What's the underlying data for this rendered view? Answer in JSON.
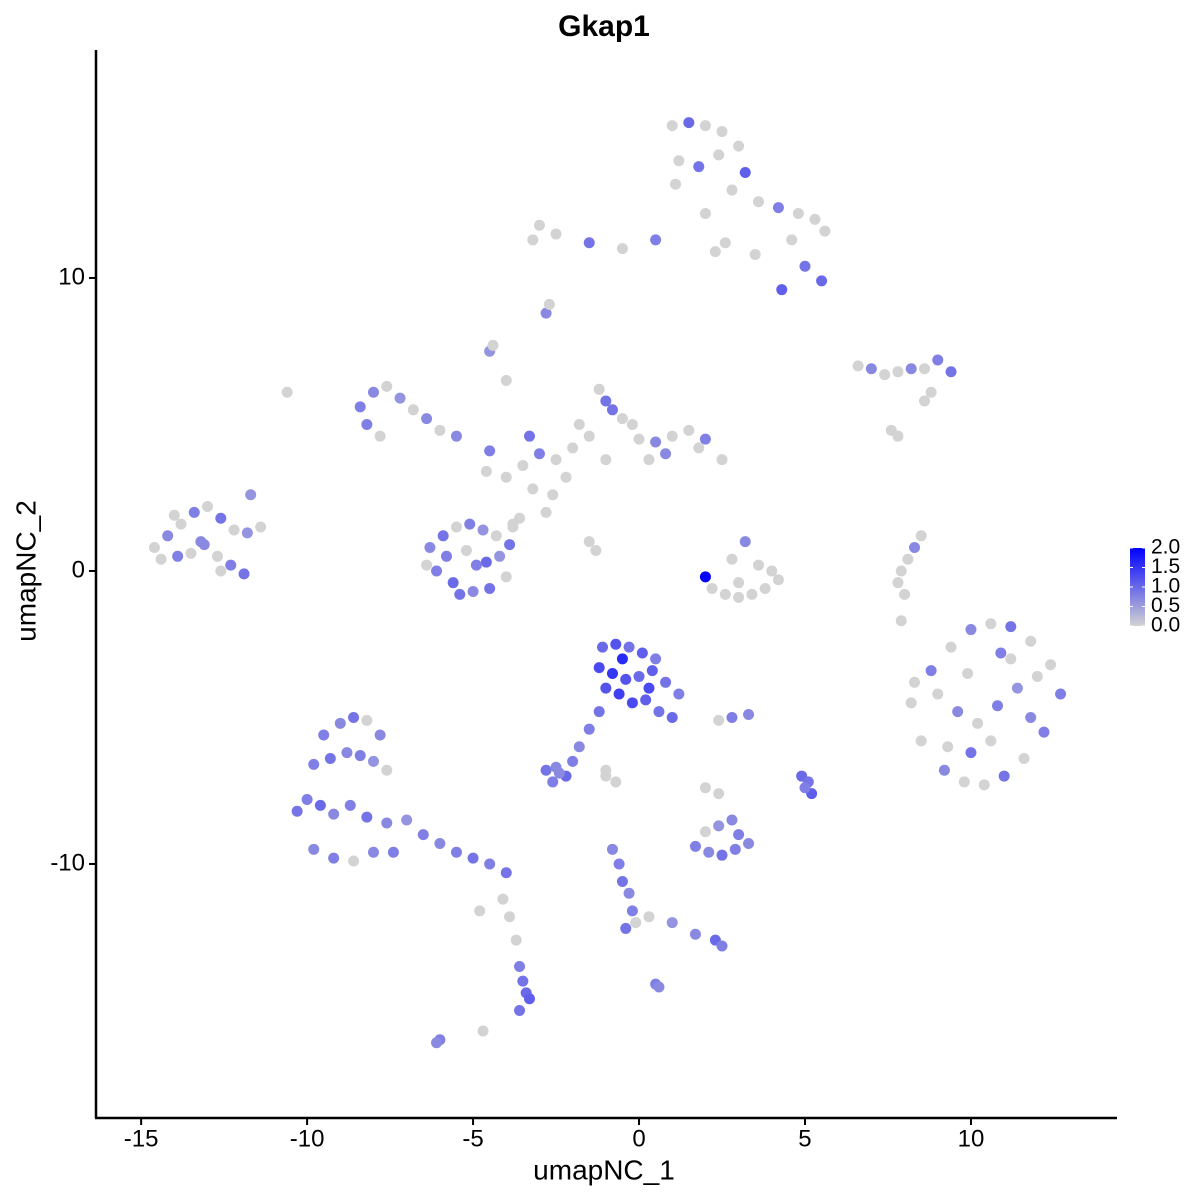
{
  "chart_data": {
    "type": "scatter",
    "title": "Gkap1",
    "x_label": "umapNC_1",
    "y_label": "umapNC_2",
    "xlim": [
      -16.36,
      14.4
    ],
    "ylim": [
      -18.67,
      17.78
    ],
    "xticks": [
      -15,
      -10,
      -5,
      0,
      5,
      10
    ],
    "yticks": [
      -10,
      0,
      10
    ],
    "color_scale": {
      "low_color": "#d3d3d3",
      "high_color": "#0000ff",
      "lim": [
        0,
        2
      ],
      "ticks": [
        {
          "value": 0,
          "label": "0.0"
        },
        0.5,
        {
          "value": 1,
          "label": "1.0"
        },
        1.5,
        {
          "value": 2,
          "label": "2.0"
        }
      ]
    },
    "series": [
      {
        "x": [
          1.0,
          1.5,
          2.0,
          2.5,
          3.0,
          1.2,
          1.8,
          2.4,
          3.2,
          1.1,
          2.8,
          3.6,
          4.2,
          4.8,
          5.3,
          5.6,
          4.6,
          5.0,
          5.5,
          4.3,
          3.5,
          2.6,
          0.5,
          -0.5,
          -1.5,
          -2.5,
          -3.0,
          -3.2,
          2.0,
          2.3
        ],
        "values": [
          15.2,
          15.3,
          15.2,
          15.0,
          14.5,
          14.0,
          13.8,
          14.2,
          13.6,
          13.2,
          13.0,
          12.6,
          12.4,
          12.2,
          12.0,
          11.6,
          11.3,
          10.4,
          9.9,
          9.6,
          10.8,
          11.2,
          11.3,
          11.0,
          11.2,
          11.5,
          11.8,
          11.3,
          12.2,
          10.9
        ],
        "color_values": [
          0,
          1.0,
          0,
          0,
          0,
          0,
          0.9,
          0,
          1.1,
          0,
          0,
          0,
          0.8,
          0,
          0,
          0,
          0,
          0.9,
          1.0,
          1.1,
          0,
          0,
          0.8,
          0,
          0.9,
          0,
          0,
          0,
          0,
          0
        ]
      },
      {
        "x": [
          -14.6,
          -14.2,
          -13.8,
          -13.4,
          -13.0,
          -12.6,
          -12.2,
          -11.8,
          -11.4,
          -14.4,
          -13.9,
          -13.5,
          -13.1,
          -12.7,
          -12.3,
          -11.9,
          -12.6,
          -13.2,
          -14.0,
          -11.7
        ],
        "values": [
          0.8,
          1.2,
          1.6,
          2.0,
          2.2,
          1.8,
          1.4,
          1.3,
          1.5,
          0.4,
          0.5,
          0.6,
          0.9,
          0.5,
          0.2,
          -0.1,
          0.0,
          1.0,
          1.9,
          2.6
        ],
        "color_values": [
          0,
          0.7,
          0,
          0.8,
          0,
          0.9,
          0,
          0.6,
          0,
          0,
          0.8,
          0,
          0.7,
          0,
          0.8,
          0.9,
          0,
          0.7,
          0,
          0.6
        ]
      },
      {
        "x": [
          -4.0,
          -3.5,
          -3.0,
          -2.5,
          -2.0,
          -1.5,
          -1.0,
          -0.5,
          0.0,
          0.5,
          1.0,
          1.5,
          2.0,
          2.5,
          -1.2,
          -0.8,
          -3.2,
          -2.8,
          -4.5,
          -2.2,
          -3.8,
          -1.0,
          0.8,
          1.8,
          -2.6,
          -0.2,
          -3.3,
          -4.6,
          -1.8,
          0.3
        ],
        "values": [
          3.2,
          3.6,
          4.0,
          3.8,
          4.2,
          4.6,
          5.8,
          5.2,
          4.5,
          4.4,
          4.6,
          4.8,
          4.5,
          3.8,
          6.2,
          5.5,
          2.8,
          2.0,
          4.1,
          3.2,
          1.6,
          3.8,
          4.0,
          4.2,
          2.6,
          5.0,
          4.6,
          3.4,
          5.0,
          3.8
        ],
        "color_values": [
          0,
          0,
          0.8,
          0,
          0,
          0,
          0.9,
          0,
          0,
          0.7,
          0,
          0,
          0.8,
          0,
          0,
          0.9,
          0,
          0,
          0.8,
          0,
          0,
          0,
          0.7,
          0,
          0,
          0,
          0.9,
          0,
          0,
          0
        ]
      },
      {
        "x": [
          -6.3,
          -5.9,
          -5.5,
          -5.1,
          -4.7,
          -4.3,
          -3.9,
          -6.1,
          -5.6,
          -5.0,
          -4.5,
          -4.0,
          -5.8,
          -5.2,
          -4.6,
          -5.4,
          -4.9,
          -4.2,
          -6.4,
          -3.8
        ],
        "values": [
          0.8,
          1.2,
          1.5,
          1.6,
          1.4,
          1.2,
          0.9,
          0.0,
          -0.4,
          -0.7,
          -0.6,
          -0.2,
          0.5,
          0.7,
          0.3,
          -0.8,
          0.2,
          0.5,
          0.2,
          1.5
        ],
        "color_values": [
          0.7,
          0.9,
          0,
          0.8,
          0.6,
          0,
          0.9,
          0.8,
          1.0,
          0.7,
          0.9,
          0,
          0.8,
          0,
          1.0,
          0.9,
          0.8,
          0.6,
          0,
          0
        ]
      },
      {
        "x": [
          -8.4,
          -8.0,
          -7.6,
          -7.2,
          -6.8,
          -6.4,
          -8.2,
          -7.8,
          -6.0,
          -5.5,
          -10.6,
          -4.5,
          -4.4,
          -4.0,
          -2.8,
          -2.7,
          -3.6,
          -1.5,
          -1.3
        ],
        "values": [
          5.6,
          6.1,
          6.3,
          5.9,
          5.5,
          5.2,
          5.0,
          4.6,
          4.8,
          4.6,
          6.1,
          7.5,
          7.7,
          6.5,
          8.8,
          9.1,
          1.8,
          1.0,
          0.7
        ],
        "color_values": [
          0.8,
          0.7,
          0,
          0.6,
          0,
          0.7,
          0.8,
          0,
          0,
          0.7,
          0,
          0.6,
          0,
          0,
          0.7,
          0,
          0,
          0,
          0
        ]
      },
      {
        "x": [
          2.2,
          2.6,
          3.0,
          3.4,
          3.8,
          4.2,
          2.8,
          3.2,
          3.6,
          3.0,
          2.0,
          4.0
        ],
        "values": [
          -0.6,
          -0.8,
          -0.9,
          -0.8,
          -0.6,
          -0.3,
          0.4,
          1.0,
          0.2,
          -0.4,
          -0.2,
          0.0
        ],
        "color_values": [
          0,
          0,
          0,
          0,
          0,
          0,
          0,
          0.7,
          0,
          0,
          2.0,
          0
        ]
      },
      {
        "x": [
          8.2,
          8.8,
          9.4,
          10.0,
          10.6,
          11.2,
          11.8,
          12.4,
          12.7,
          8.5,
          9.2,
          9.8,
          10.4,
          11.0,
          11.6,
          12.2,
          8.3,
          9.0,
          9.6,
          10.2,
          10.8,
          11.4,
          12.0,
          9.3,
          10.0,
          10.6,
          11.2,
          11.8,
          9.9,
          10.9
        ],
        "values": [
          -4.5,
          -3.4,
          -2.6,
          -2.0,
          -1.8,
          -1.9,
          -2.4,
          -3.2,
          -4.2,
          -5.8,
          -6.8,
          -7.2,
          -7.3,
          -7.0,
          -6.4,
          -5.5,
          -3.8,
          -4.2,
          -4.8,
          -5.2,
          -4.6,
          -4.0,
          -3.6,
          -6.0,
          -6.2,
          -5.8,
          -3.0,
          -5.0,
          -3.5,
          -2.8
        ],
        "color_values": [
          0,
          0.8,
          0,
          0.7,
          0,
          0.9,
          0,
          0,
          0.8,
          0,
          0.7,
          0,
          0,
          0.9,
          0,
          0.8,
          0,
          0,
          0.7,
          0,
          0.8,
          0.6,
          0,
          0,
          0.9,
          0,
          0,
          0.7,
          0,
          0.8
        ]
      },
      {
        "x": [
          6.6,
          7.0,
          7.4,
          7.8,
          8.2,
          8.6,
          9.0,
          9.4,
          8.8,
          8.6,
          7.6,
          7.8
        ],
        "values": [
          7.0,
          6.9,
          6.7,
          6.8,
          6.9,
          6.9,
          7.2,
          6.8,
          6.1,
          5.8,
          4.8,
          4.6
        ],
        "color_values": [
          0,
          0.7,
          0,
          0,
          0.7,
          0,
          0.8,
          0.9,
          0,
          0,
          0,
          0
        ]
      },
      {
        "x": [
          8.5,
          8.3,
          8.1,
          7.9,
          7.8,
          8.0,
          7.9
        ],
        "values": [
          1.2,
          0.8,
          0.4,
          0.0,
          -0.4,
          -0.8,
          -1.7
        ],
        "color_values": [
          0,
          0.7,
          0,
          0,
          0,
          0,
          0
        ]
      },
      {
        "x": [
          -1.1,
          -0.7,
          -0.3,
          0.1,
          0.5,
          -1.2,
          -0.8,
          -0.4,
          0.0,
          0.4,
          0.8,
          1.2,
          -0.6,
          -0.2,
          0.2,
          0.6,
          1.0,
          -1.0,
          -0.5,
          0.3
        ],
        "values": [
          -2.6,
          -2.5,
          -2.6,
          -2.8,
          -3.0,
          -3.3,
          -3.5,
          -3.7,
          -3.6,
          -3.4,
          -3.8,
          -4.2,
          -4.2,
          -4.5,
          -4.4,
          -4.8,
          -5.0,
          -4.0,
          -3.0,
          -4.0
        ],
        "color_values": [
          1.0,
          1.2,
          0.9,
          1.1,
          0.8,
          1.3,
          1.5,
          1.2,
          1.0,
          1.1,
          0.9,
          0.8,
          1.4,
          1.3,
          1.1,
          0.9,
          1.0,
          1.2,
          1.6,
          1.3
        ]
      },
      {
        "x": [
          -1.2,
          -1.5,
          -1.8,
          -2.0,
          -2.8,
          -2.5,
          -2.2,
          -2.6,
          -2.4,
          -1.0
        ],
        "values": [
          -4.8,
          -5.4,
          -6.0,
          -6.5,
          -6.8,
          -6.7,
          -7.0,
          -7.2,
          -6.9,
          -7.0
        ],
        "color_values": [
          0.9,
          0.8,
          0.7,
          0.8,
          0.9,
          0.7,
          1.0,
          0.8,
          0.7,
          0
        ]
      },
      {
        "x": [
          -9.5,
          -9.0,
          -8.6,
          -8.2,
          -7.8,
          -9.8,
          -9.3,
          -8.8,
          -8.4,
          -8.0,
          -7.6,
          -10.3,
          -10.0,
          -9.6,
          -9.2,
          -8.7,
          -8.2,
          -7.6,
          -7.0,
          -6.5,
          -6.0,
          -5.5,
          -5.0,
          -4.5,
          -4.0,
          -9.8,
          -9.2,
          -8.6,
          -8.0,
          -7.4
        ],
        "values": [
          -5.6,
          -5.2,
          -5.0,
          -5.1,
          -5.6,
          -6.6,
          -6.4,
          -6.2,
          -6.3,
          -6.5,
          -6.8,
          -8.2,
          -7.8,
          -8.0,
          -8.3,
          -8.0,
          -8.4,
          -8.6,
          -8.5,
          -9.0,
          -9.3,
          -9.6,
          -9.8,
          -10.0,
          -10.3,
          -9.5,
          -9.8,
          -9.9,
          -9.6,
          -9.6
        ],
        "color_values": [
          0.8,
          0.7,
          0.9,
          0,
          0.7,
          0.8,
          0.9,
          0.7,
          0.8,
          0.6,
          0,
          0.9,
          0.8,
          1.0,
          0.7,
          0.8,
          0.9,
          0.7,
          0.6,
          0.8,
          0.7,
          0.8,
          0.9,
          0.8,
          0.9,
          0.7,
          0.8,
          0,
          0.7,
          0.8
        ]
      },
      {
        "x": [
          -4.1,
          -3.9,
          -3.7,
          -3.6,
          -3.5,
          -3.4,
          -3.3,
          -3.6,
          -4.7,
          -6.0,
          -6.1,
          -4.8
        ],
        "values": [
          -11.2,
          -11.8,
          -12.6,
          -13.5,
          -14.0,
          -14.4,
          -14.6,
          -15.0,
          -15.7,
          -16.0,
          -16.1,
          -11.6
        ],
        "color_values": [
          0,
          0,
          0,
          0.8,
          0.9,
          1.0,
          1.1,
          0.9,
          0,
          0.8,
          0.7,
          0
        ]
      },
      {
        "x": [
          1.7,
          2.1,
          2.5,
          2.9,
          3.3,
          2.0,
          2.4,
          2.8,
          3.0,
          2.4
        ],
        "values": [
          -9.4,
          -9.6,
          -9.7,
          -9.5,
          -9.3,
          -8.9,
          -8.7,
          -8.5,
          -9.0,
          -7.6
        ],
        "color_values": [
          0.8,
          0.7,
          0.9,
          0.8,
          0.7,
          0,
          0.6,
          0.7,
          0.8,
          0
        ]
      },
      {
        "x": [
          -0.8,
          -0.6,
          -0.5,
          -0.3,
          -0.2,
          -0.4,
          0.3,
          1.0,
          1.7,
          2.3,
          2.5,
          -0.1
        ],
        "values": [
          -9.5,
          -10.0,
          -10.6,
          -11.0,
          -11.6,
          -12.2,
          -11.8,
          -12.0,
          -12.4,
          -12.6,
          -12.8,
          -12.0
        ],
        "color_values": [
          0.7,
          0.8,
          0.9,
          0.7,
          0.8,
          0.9,
          0,
          0.6,
          0.7,
          1.0,
          0.8,
          0
        ]
      },
      {
        "x": [
          4.9,
          5.1,
          5.2,
          5.0,
          2.4,
          2.8,
          3.3,
          0.5,
          0.6,
          -1.0,
          -0.7,
          2.0
        ],
        "values": [
          -7.0,
          -7.2,
          -7.6,
          -7.4,
          -5.1,
          -5.0,
          -4.9,
          -14.1,
          -14.2,
          -6.8,
          -7.2,
          -7.4
        ],
        "color_values": [
          1.0,
          0.9,
          1.1,
          0.8,
          0,
          0.8,
          0.7,
          0.8,
          0.7,
          0,
          0,
          0
        ]
      }
    ]
  }
}
